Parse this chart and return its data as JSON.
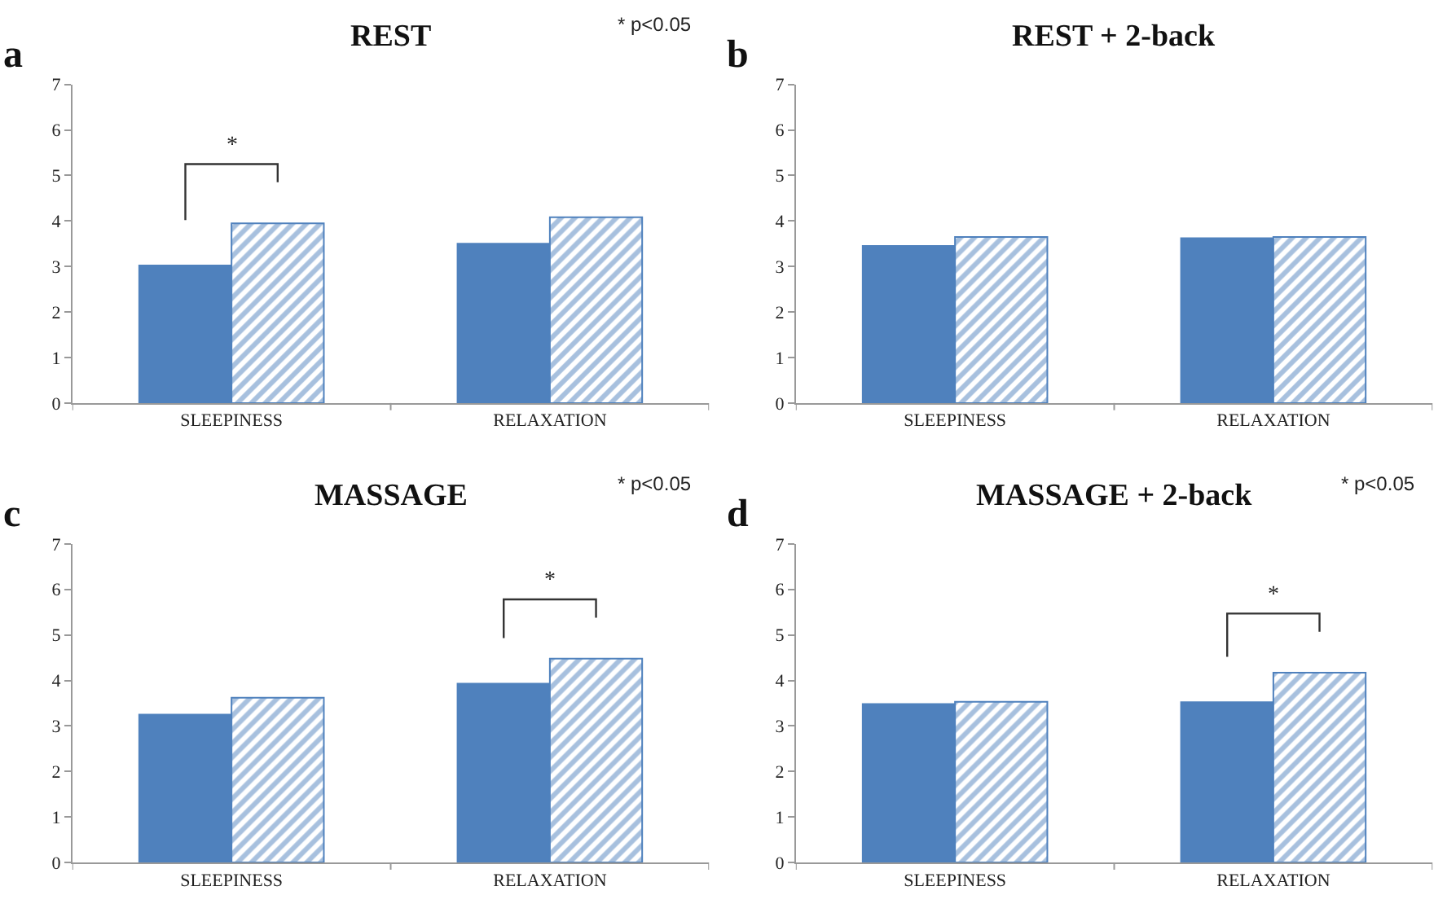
{
  "chart_data": [
    {
      "type": "bar",
      "title": "REST",
      "categories": [
        "SLEEPINESS",
        "RELAXATION"
      ],
      "series": [
        {
          "color": "#4f81bd",
          "values": [
            3.02,
            3.5
          ]
        },
        {
          "color": "#4f81bd",
          "values": [
            3.95,
            4.08
          ]
        }
      ],
      "ylim": [
        0,
        7
      ],
      "yticks": [
        0,
        1,
        2,
        3,
        4,
        5,
        6,
        7
      ],
      "annotations": [
        "a",
        "* p<0.05",
        "*"
      ]
    },
    {
      "type": "bar",
      "title": "REST + 2-back",
      "categories": [
        "SLEEPINESS",
        "RELAXATION"
      ],
      "series": [
        {
          "color": "#4f81bd",
          "values": [
            3.45,
            3.62
          ]
        },
        {
          "color": "#4f81bd",
          "values": [
            3.65,
            3.65
          ]
        }
      ],
      "ylim": [
        0,
        7
      ],
      "yticks": [
        0,
        1,
        2,
        3,
        4,
        5,
        6,
        7
      ],
      "annotations": [
        "b"
      ]
    },
    {
      "type": "bar",
      "title": "MASSAGE",
      "categories": [
        "SLEEPINESS",
        "RELAXATION"
      ],
      "series": [
        {
          "color": "#4f81bd",
          "values": [
            3.25,
            3.93
          ]
        },
        {
          "color": "#4f81bd",
          "values": [
            3.62,
            4.48
          ]
        }
      ],
      "ylim": [
        0,
        7
      ],
      "yticks": [
        0,
        1,
        2,
        3,
        4,
        5,
        6,
        7
      ],
      "annotations": [
        "c",
        "* p<0.05",
        "*"
      ]
    },
    {
      "type": "bar",
      "title": "MASSAGE + 2-back",
      "categories": [
        "SLEEPINESS",
        "RELAXATION"
      ],
      "series": [
        {
          "color": "#4f81bd",
          "values": [
            3.48,
            3.52
          ]
        },
        {
          "color": "#4f81bd",
          "values": [
            3.53,
            4.17
          ]
        }
      ],
      "ylim": [
        0,
        7
      ],
      "yticks": [
        0,
        1,
        2,
        3,
        4,
        5,
        6,
        7
      ],
      "annotations": [
        "d",
        "* p<0.05",
        "*"
      ]
    }
  ]
}
